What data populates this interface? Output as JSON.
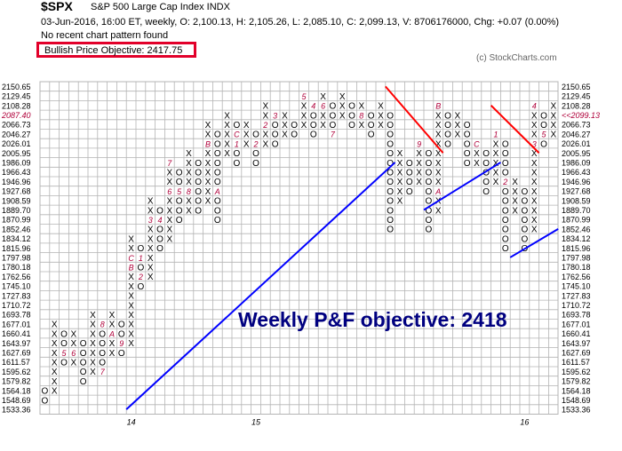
{
  "header": {
    "symbol": "$SPX",
    "index_name": "S&P 500 Large Cap Index  INDX",
    "quote_line": "03-Jun-2016, 16:00 ET, weekly, O: 2,100.13, H: 2,105.26, L: 2,085.10, C: 2,099.13, V: 8706176000, Chg: +0.07 (0.00%)",
    "pattern_line": "No recent chart pattern found",
    "objective_label": "Bullish Price Objective: 2417.75",
    "copyright": "(c) StockCharts.com"
  },
  "colors": {
    "grid": "#b4b4b4",
    "x_mark": "#000000",
    "o_mark": "#000000",
    "month_mark": "#b0003a",
    "trendline_bullish": "#0000ff",
    "trendline_bearish": "#ff0000",
    "annotation": "#000080",
    "objective_box": "#e2002a",
    "last_price_label": "#b0003a"
  },
  "chart_data": {
    "type": "point_and_figure",
    "timeframe": "weekly",
    "price_levels": [
      "2150.65",
      "2129.45",
      "2108.28",
      "2087.40",
      "2066.73",
      "2046.27",
      "2026.01",
      "2005.95",
      "1986.09",
      "1966.43",
      "1946.96",
      "1927.68",
      "1908.59",
      "1889.70",
      "1870.99",
      "1852.46",
      "1834.12",
      "1815.96",
      "1797.98",
      "1780.18",
      "1762.56",
      "1745.10",
      "1727.83",
      "1710.72",
      "1693.78",
      "1677.01",
      "1660.41",
      "1643.97",
      "1627.69",
      "1611.57",
      "1595.62",
      "1579.82",
      "1564.18",
      "1548.69",
      "1533.36"
    ],
    "last_price_label": "<<2099.13",
    "last_price_left_label": "2087.40",
    "year_labels": [
      {
        "label": "14",
        "column": 9
      },
      {
        "label": "15",
        "column": 22
      },
      {
        "label": "16",
        "column": 50
      }
    ],
    "columns": [
      {
        "type": "O",
        "top": "1564.18",
        "marks": {}
      },
      {
        "type": "X",
        "top": "1677.01",
        "marks": {}
      },
      {
        "type": "O",
        "top": "1660.41",
        "marks": {
          "1627.69": "5"
        }
      },
      {
        "type": "X",
        "top": "1660.41",
        "marks": {
          "1627.69": "6"
        }
      },
      {
        "type": "O",
        "top": "1643.97",
        "marks": {}
      },
      {
        "type": "X",
        "top": "1693.78",
        "marks": {}
      },
      {
        "type": "O",
        "top": "1677.01",
        "marks": {
          "1677.01": "8",
          "1595.62": "7"
        }
      },
      {
        "type": "X",
        "top": "1693.78",
        "marks": {
          "1660.41": "A"
        }
      },
      {
        "type": "O",
        "top": "1677.01",
        "marks": {
          "1643.97": "9"
        }
      },
      {
        "type": "X",
        "top": "1834.12",
        "marks": {
          "1797.98": "C",
          "1780.18": "B"
        }
      },
      {
        "type": "O",
        "top": "1815.96",
        "marks": {
          "1797.98": "1",
          "1762.56": "2"
        }
      },
      {
        "type": "X",
        "top": "1908.59",
        "marks": {
          "1870.99": "3"
        }
      },
      {
        "type": "O",
        "top": "1889.70",
        "marks": {
          "1870.99": "4"
        }
      },
      {
        "type": "X",
        "top": "1986.09",
        "marks": {
          "1986.09": "7",
          "1927.68": "6"
        }
      },
      {
        "type": "O",
        "top": "1966.43",
        "marks": {
          "1927.68": "5"
        }
      },
      {
        "type": "X",
        "top": "2005.95",
        "marks": {
          "1927.68": "8"
        }
      },
      {
        "type": "O",
        "top": "1986.09",
        "marks": {
          "2005.95": "9"
        }
      },
      {
        "type": "X",
        "top": "2066.73",
        "marks": {
          "2026.01": "B"
        }
      },
      {
        "type": "O",
        "top": "2046.27",
        "marks": {
          "1927.68": "A"
        }
      },
      {
        "type": "X",
        "top": "2087.40",
        "marks": {}
      },
      {
        "type": "O",
        "top": "2066.73",
        "marks": {
          "2046.27": "C",
          "2026.01": "1"
        }
      },
      {
        "type": "X",
        "top": "2066.73",
        "marks": {}
      },
      {
        "type": "O",
        "top": "2046.27",
        "marks": {
          "2026.01": "2"
        }
      },
      {
        "type": "X",
        "top": "2108.28",
        "marks": {
          "2066.73": "2"
        }
      },
      {
        "type": "O",
        "top": "2087.40",
        "marks": {
          "2087.40": "3"
        }
      },
      {
        "type": "X",
        "top": "2087.40",
        "marks": {}
      },
      {
        "type": "O",
        "top": "2066.73",
        "marks": {}
      },
      {
        "type": "X",
        "top": "2129.45",
        "marks": {
          "2129.45": "5"
        }
      },
      {
        "type": "O",
        "top": "2108.28",
        "marks": {
          "2108.28": "4"
        }
      },
      {
        "type": "X",
        "top": "2129.45",
        "marks": {
          "2108.28": "6"
        }
      },
      {
        "type": "O",
        "top": "2108.28",
        "marks": {
          "2046.27": "7"
        }
      },
      {
        "type": "X",
        "top": "2129.45",
        "marks": {}
      },
      {
        "type": "O",
        "top": "2108.28",
        "marks": {}
      },
      {
        "type": "X",
        "top": "2108.28",
        "marks": {
          "2087.40": "8"
        }
      },
      {
        "type": "O",
        "top": "2087.40",
        "marks": {}
      },
      {
        "type": "X",
        "top": "2108.28",
        "marks": {}
      },
      {
        "type": "O",
        "top": "2087.40",
        "marks": {}
      },
      {
        "type": "X",
        "top": "2005.95",
        "marks": {}
      },
      {
        "type": "O",
        "top": "1986.09",
        "marks": {}
      },
      {
        "type": "X",
        "top": "2026.01",
        "marks": {
          "2026.01": "9"
        }
      },
      {
        "type": "O",
        "top": "2005.95",
        "marks": {}
      },
      {
        "type": "X",
        "top": "2108.28",
        "marks": {
          "2108.28": "B",
          "1927.68": "A"
        }
      },
      {
        "type": "O",
        "top": "2087.40",
        "marks": {}
      },
      {
        "type": "X",
        "top": "2087.40",
        "marks": {}
      },
      {
        "type": "O",
        "top": "2066.73",
        "marks": {}
      },
      {
        "type": "X",
        "top": "2026.01",
        "marks": {
          "2026.01": "C"
        }
      },
      {
        "type": "O",
        "top": "2005.95",
        "marks": {}
      },
      {
        "type": "X",
        "top": "2046.27",
        "marks": {
          "2046.27": "1"
        }
      },
      {
        "type": "O",
        "top": "2026.01",
        "marks": {
          "1946.96": "2"
        }
      },
      {
        "type": "X",
        "top": "1946.96",
        "marks": {}
      },
      {
        "type": "O",
        "top": "1927.68",
        "marks": {}
      },
      {
        "type": "X",
        "top": "2108.28",
        "marks": {
          "2108.28": "4",
          "2026.01": "3"
        }
      },
      {
        "type": "O",
        "top": "2087.40",
        "marks": {
          "2046.27": "5"
        }
      },
      {
        "type": "X",
        "top": "2108.28",
        "marks": {}
      }
    ],
    "column_spans": [
      [
        "1564.18",
        "1548.69"
      ],
      [
        "1677.01",
        "1564.18"
      ],
      [
        "1660.41",
        "1611.57"
      ],
      [
        "1660.41",
        "1611.57"
      ],
      [
        "1643.97",
        "1579.82"
      ],
      [
        "1693.78",
        "1595.62"
      ],
      [
        "1677.01",
        "1595.62"
      ],
      [
        "1693.78",
        "1627.69"
      ],
      [
        "1677.01",
        "1627.69"
      ],
      [
        "1834.12",
        "1643.97"
      ],
      [
        "1815.96",
        "1745.10"
      ],
      [
        "1908.59",
        "1762.56"
      ],
      [
        "1889.70",
        "1815.96"
      ],
      [
        "1986.09",
        "1834.12"
      ],
      [
        "1966.43",
        "1870.99"
      ],
      [
        "2005.95",
        "1889.70"
      ],
      [
        "1986.09",
        "1889.70"
      ],
      [
        "2066.73",
        "1908.59"
      ],
      [
        "2046.27",
        "1870.99"
      ],
      [
        "2087.40",
        "2005.95"
      ],
      [
        "2066.73",
        "1986.09"
      ],
      [
        "2066.73",
        "2026.01"
      ],
      [
        "2046.27",
        "1986.09"
      ],
      [
        "2108.28",
        "2026.01"
      ],
      [
        "2087.40",
        "2026.01"
      ],
      [
        "2087.40",
        "2046.27"
      ],
      [
        "2066.73",
        "2046.27"
      ],
      [
        "2129.45",
        "2066.73"
      ],
      [
        "2108.28",
        "2046.27"
      ],
      [
        "2129.45",
        "2066.73"
      ],
      [
        "2108.28",
        "2046.27"
      ],
      [
        "2129.45",
        "2087.40"
      ],
      [
        "2108.28",
        "2066.73"
      ],
      [
        "2108.28",
        "2066.73"
      ],
      [
        "2087.40",
        "2046.27"
      ],
      [
        "2108.28",
        "2066.73"
      ],
      [
        "2087.40",
        "1852.46"
      ],
      [
        "2005.95",
        "1908.59"
      ],
      [
        "1986.09",
        "1927.68"
      ],
      [
        "2026.01",
        "1946.96"
      ],
      [
        "2005.95",
        "1852.46"
      ],
      [
        "2108.28",
        "1889.70"
      ],
      [
        "2087.40",
        "2026.01"
      ],
      [
        "2087.40",
        "2046.27"
      ],
      [
        "2066.73",
        "1986.09"
      ],
      [
        "2026.01",
        "1986.09"
      ],
      [
        "2005.95",
        "1927.68"
      ],
      [
        "2046.27",
        "1946.96"
      ],
      [
        "2026.01",
        "1815.96"
      ],
      [
        "1946.96",
        "1889.70"
      ],
      [
        "1927.68",
        "1815.96"
      ],
      [
        "2108.28",
        "1852.46"
      ],
      [
        "2087.40",
        "2026.01"
      ],
      [
        "2108.28",
        "2046.27"
      ]
    ],
    "trendlines": [
      {
        "kind": "bullish_support",
        "color": "blue",
        "from": {
          "column": 9,
          "price": "1533.36"
        },
        "to": {
          "column": 36,
          "price": "1986.09"
        }
      },
      {
        "kind": "bullish_support",
        "color": "blue",
        "from": {
          "column": 40,
          "price": "1889.70"
        },
        "to": {
          "column": 47,
          "price": "1986.09"
        }
      },
      {
        "kind": "bullish_support",
        "color": "blue",
        "from": {
          "column": 49,
          "price": "1797.98"
        },
        "to": {
          "column": 53,
          "price": "1852.46"
        }
      },
      {
        "kind": "bearish_resistance",
        "color": "red",
        "from": {
          "column": 36,
          "price": "2150.65"
        },
        "to": {
          "column": 41,
          "price": "2005.95"
        }
      },
      {
        "kind": "bearish_resistance",
        "color": "red",
        "from": {
          "column": 47,
          "price": "2108.28"
        },
        "to": {
          "column": 51,
          "price": "2005.95"
        }
      }
    ],
    "annotation": "Weekly P&F objective: 2418"
  }
}
